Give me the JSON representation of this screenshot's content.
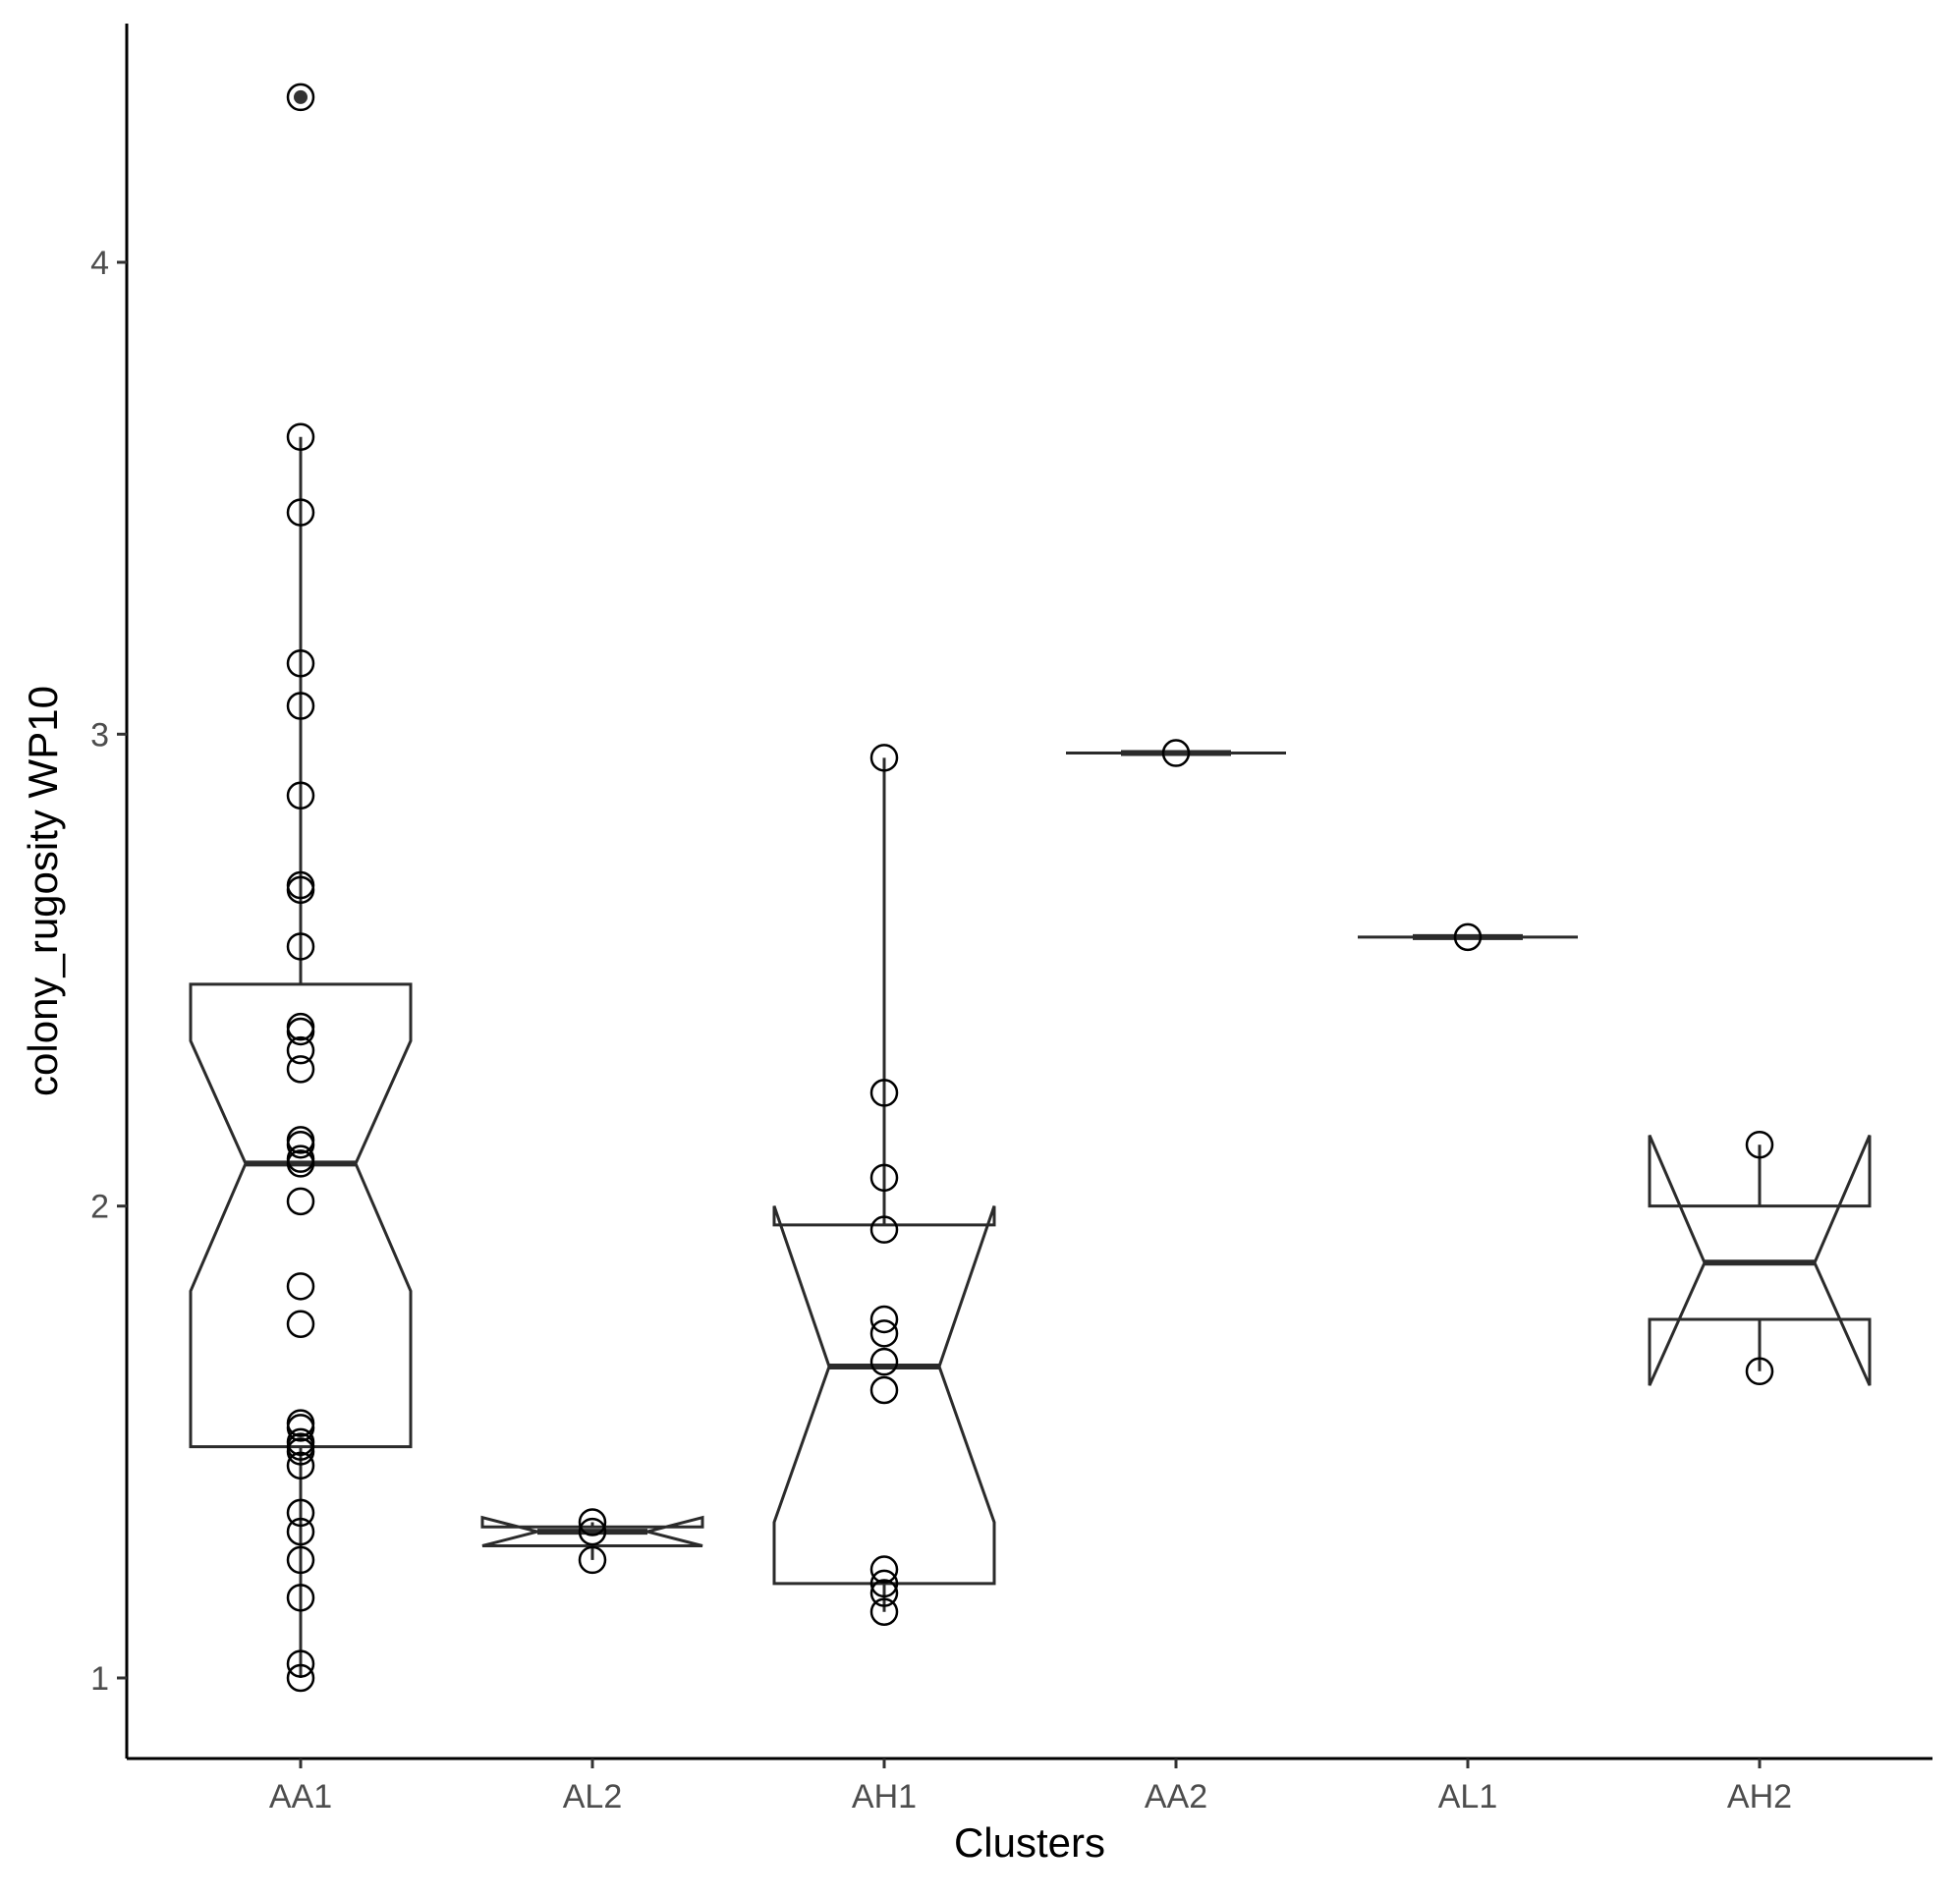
{
  "chart_data": {
    "type": "boxplot",
    "xlabel": "Clusters",
    "ylabel": "colony_rugosity WP10",
    "ylim": [
      0.83,
      4.48
    ],
    "yticks": [
      1,
      2,
      3,
      4
    ],
    "categories": [
      "AA1",
      "AL2",
      "AH1",
      "AA2",
      "AL1",
      "AH2"
    ],
    "notched": true,
    "grid": false,
    "boxes": [
      {
        "category": "AA1",
        "q1": 1.49,
        "median": 2.09,
        "q3": 2.47,
        "notch_low": 1.82,
        "notch_high": 2.35,
        "whisker_low": 1.0,
        "whisker_high": 3.63,
        "outliers": [
          4.35
        ]
      },
      {
        "category": "AL2",
        "q1": 1.28,
        "median": 1.31,
        "q3": 1.32,
        "notch_low": 1.28,
        "notch_high": 1.34,
        "whisker_low": 1.25,
        "whisker_high": 1.33,
        "outliers": []
      },
      {
        "category": "AH1",
        "q1": 1.2,
        "median": 1.66,
        "q3": 1.96,
        "notch_low": 1.33,
        "notch_high": 2.0,
        "whisker_low": 1.14,
        "whisker_high": 2.95,
        "outliers": []
      },
      {
        "category": "AA2",
        "q1": 2.96,
        "median": 2.96,
        "q3": 2.96,
        "notch_low": 2.96,
        "notch_high": 2.96,
        "whisker_low": 2.96,
        "whisker_high": 2.96,
        "outliers": []
      },
      {
        "category": "AL1",
        "q1": 2.57,
        "median": 2.57,
        "q3": 2.57,
        "notch_low": 2.57,
        "notch_high": 2.57,
        "whisker_low": 2.57,
        "whisker_high": 2.57,
        "outliers": []
      },
      {
        "category": "AH2",
        "q1": 1.76,
        "median": 1.88,
        "q3": 2.0,
        "notch_low": 1.62,
        "notch_high": 2.15,
        "whisker_low": 1.65,
        "whisker_high": 2.13,
        "outliers": []
      }
    ],
    "points": [
      {
        "category": "AA1",
        "values": [
          4.35,
          3.63,
          3.47,
          3.15,
          3.06,
          2.87,
          2.68,
          2.67,
          2.55,
          2.38,
          2.37,
          2.33,
          2.29,
          2.14,
          2.13,
          2.1,
          2.09,
          2.01,
          1.83,
          1.75,
          1.54,
          1.53,
          1.5,
          1.49,
          1.48,
          1.45,
          1.35,
          1.31,
          1.25,
          1.17,
          1.03,
          1.0
        ]
      },
      {
        "category": "AL2",
        "values": [
          1.33,
          1.31,
          1.25
        ]
      },
      {
        "category": "AH1",
        "values": [
          2.95,
          2.24,
          2.06,
          1.95,
          1.76,
          1.73,
          1.67,
          1.61,
          1.23,
          1.2,
          1.18,
          1.14
        ]
      },
      {
        "category": "AA2",
        "values": [
          2.96
        ]
      },
      {
        "category": "AL1",
        "values": [
          2.57
        ]
      },
      {
        "category": "AH2",
        "values": [
          2.13,
          1.65
        ]
      }
    ]
  }
}
